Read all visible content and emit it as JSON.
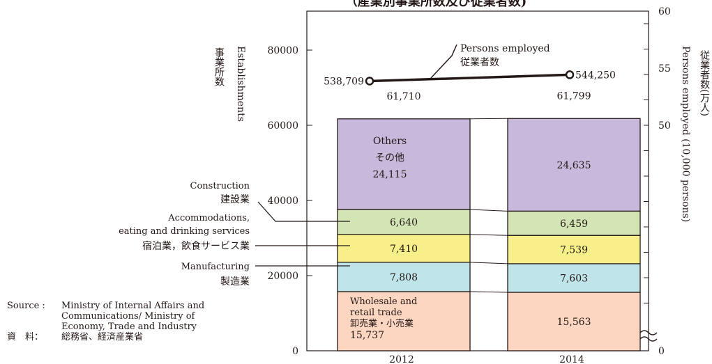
{
  "chart_data": {
    "type": "bar",
    "title": "（産業別事業所数及び従業者数)",
    "categories": [
      "2012",
      "2014"
    ],
    "totals": [
      "61,710",
      "61,799"
    ],
    "series": [
      {
        "key": "wholesale",
        "label_lines": [
          "Wholesale and",
          "retail trade",
          "卸売業・小売業"
        ],
        "values": [
          15737,
          15563
        ],
        "value_labels": [
          "15,737",
          "15,563"
        ],
        "color": "#fcd6c1"
      },
      {
        "key": "manufacturing",
        "label_lines": [
          "Manufacturing",
          "製造業"
        ],
        "values": [
          7808,
          7603
        ],
        "value_labels": [
          "7,808",
          "7,603"
        ],
        "color": "#bfe5ea"
      },
      {
        "key": "accommodations",
        "label_lines": [
          "Accommodations,",
          "eating and drinking services",
          "宿泊業，飲食サービス業"
        ],
        "values": [
          7410,
          7539
        ],
        "value_labels": [
          "7,410",
          "7,539"
        ],
        "color": "#f6ef8a"
      },
      {
        "key": "construction",
        "label_lines": [
          "Construction",
          "建設業"
        ],
        "values": [
          6640,
          6459
        ],
        "value_labels": [
          "6,640",
          "6,459"
        ],
        "color": "#d3e5b5"
      },
      {
        "key": "others",
        "label_lines": [
          "Others",
          "その他"
        ],
        "values": [
          24115,
          24635
        ],
        "value_labels": [
          "24,115",
          "24,635"
        ],
        "color": "#c7b8dc"
      }
    ],
    "line_series": {
      "label_lines": [
        "Persons employed",
        "従業者数"
      ],
      "values": [
        53.8709,
        54.425
      ],
      "value_labels": [
        "538,709",
        "544,250"
      ]
    },
    "left_axis": {
      "label_lines": [
        "事業所数",
        "Establishments"
      ],
      "ticks": [
        0,
        20000,
        40000,
        60000,
        80000
      ],
      "tick_labels": [
        "0",
        "20000",
        "40000",
        "60000",
        "80000"
      ],
      "ylim": [
        0,
        80000
      ]
    },
    "right_axis": {
      "label_lines": [
        "従業者数(万人)",
        "Persons employed (10,000 persons)"
      ],
      "ticks": [
        50,
        55,
        60
      ],
      "tick_labels": [
        "0",
        "50",
        "55",
        "60"
      ],
      "ylim": [
        50,
        60
      ],
      "broken": true
    },
    "source": {
      "en_label": "Source :",
      "en_text": "Ministry of Internal Affairs and\nCommunications/ Ministry of\nEconomy, Trade and Industry",
      "jp_label": "資　料：",
      "jp_text": "総務省、経済産業省"
    }
  }
}
